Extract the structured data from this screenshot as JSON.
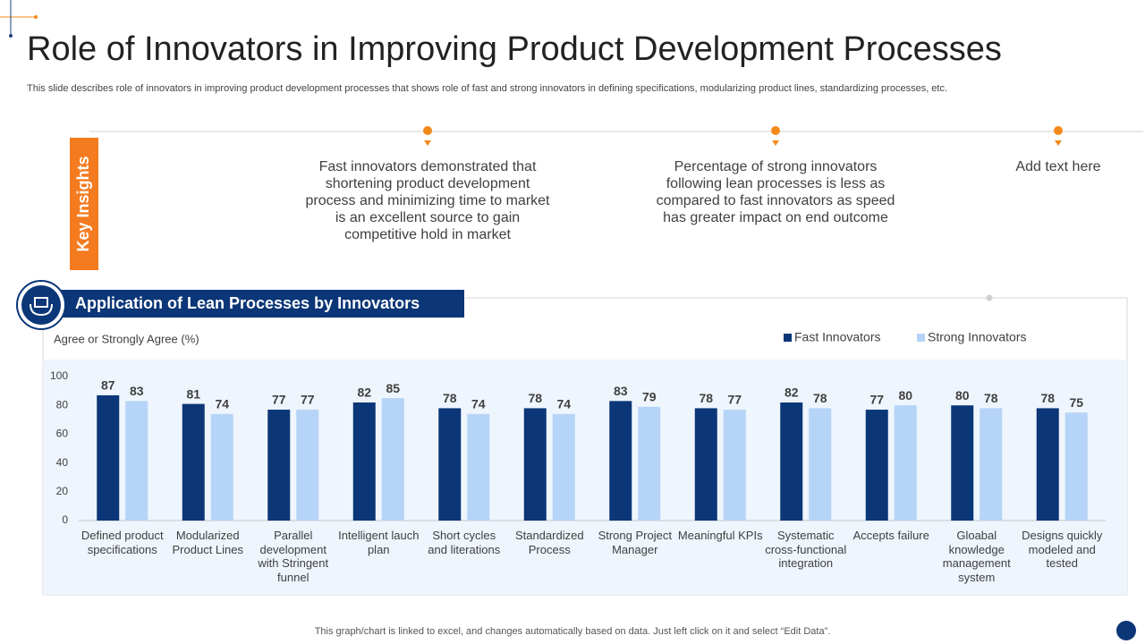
{
  "title": "Role of Innovators in Improving Product Development Processes",
  "subtitle": "This slide describes role of innovators in improving product development processes that shows role of fast and strong innovators in defining specifications, modularizing product lines, standardizing processes, etc.",
  "key_insights": {
    "heading": "Key Insights",
    "items": [
      "Fast innovators demonstrated that shortening product development process and minimizing time to market is an excellent  source to gain competitive hold in market",
      "Percentage of strong innovators following lean processes is less as compared to fast innovators as speed has greater impact on end outcome",
      "Add text here"
    ]
  },
  "footer": "This graph/chart is linked to excel,  and changes automatically based on data. Just left click on it and select “Edit Data”.",
  "chart_data": {
    "type": "bar",
    "title": "Application of Lean Processes by Innovators",
    "y_label": "Agree or Strongly Agree (%)",
    "categories": [
      "Defined product specifications",
      "Modularized Product Lines",
      "Parallel development with Stringent funnel",
      "Intelligent lauch plan",
      "Short cycles and literations",
      "Standardized Process",
      "Strong Project Manager",
      "Meaningful KPIs",
      "Systematic cross-functional integration",
      "Accepts failure",
      "Gloabal knowledge management system",
      "Designs quickly modeled and tested"
    ],
    "series": [
      {
        "name": "Fast Innovators",
        "color": "#0b3677",
        "values": [
          87,
          81,
          77,
          82,
          78,
          78,
          83,
          78,
          82,
          77,
          80,
          78
        ]
      },
      {
        "name": "Strong Innovators",
        "color": "#b5d4f8",
        "values": [
          83,
          74,
          77,
          85,
          74,
          74,
          79,
          77,
          78,
          80,
          78,
          75
        ]
      }
    ],
    "ylim": [
      0,
      100
    ],
    "yticks": [
      0,
      20,
      40,
      60,
      80,
      100
    ],
    "grid": false,
    "legend": "top-right"
  }
}
